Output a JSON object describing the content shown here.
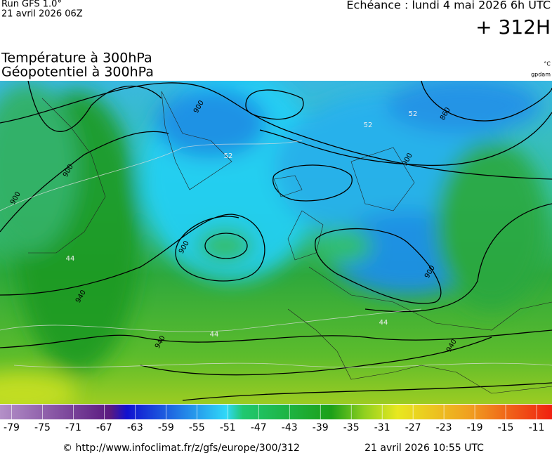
{
  "header": {
    "run": "Run GFS 1.0°",
    "run_date": "21 avril 2026 06Z",
    "valid": "Echéance : lundi 4 mai 2026 6h UTC",
    "lead": "+ 312H",
    "title1": "Température à 300hPa",
    "title2": "Géopotentiel à 300hPa",
    "unit1": "°C",
    "unit2": "gpdam"
  },
  "map": {
    "contour_labels": [
      900,
      900,
      900,
      900,
      900,
      900,
      860,
      940,
      940,
      940
    ],
    "temperature_labels": [
      52,
      52,
      52,
      44,
      44,
      44
    ]
  },
  "legend": {
    "range": [
      -80.5,
      -9
    ],
    "ticks": [
      -79,
      -75,
      -71,
      -67,
      -63,
      -59,
      -55,
      -51,
      -47,
      -43,
      -39,
      -35,
      -31,
      -27,
      -23,
      -19,
      -15,
      -11
    ]
  },
  "footer": {
    "url": "© http://www.infoclimat.fr/z/gfs/europe/300/312",
    "date": "21 avril 2026 10:55 UTC"
  }
}
